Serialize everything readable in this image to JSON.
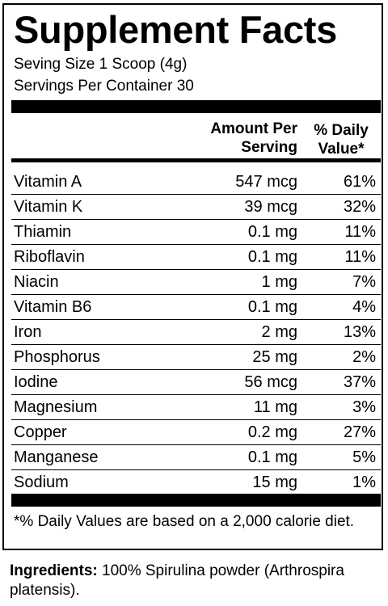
{
  "title": "Supplement Facts",
  "serving_size": "Seving Size 1 Scoop (4g)",
  "servings_per_container": "Servings Per Container 30",
  "header": {
    "amount_line1": "Amount Per",
    "amount_line2": "Serving",
    "dv_line1": "% Daily",
    "dv_line2": "Value*"
  },
  "nutrients": [
    {
      "name": "Vitamin A",
      "amount": "547 mcg",
      "dv": "61%"
    },
    {
      "name": "Vitamin K",
      "amount": "39 mcg",
      "dv": "32%"
    },
    {
      "name": "Thiamin",
      "amount": "0.1 mg",
      "dv": "11%"
    },
    {
      "name": "Riboflavin",
      "amount": "0.1 mg",
      "dv": "11%"
    },
    {
      "name": "Niacin",
      "amount": "1 mg",
      "dv": "7%"
    },
    {
      "name": "Vitamin B6",
      "amount": "0.1 mg",
      "dv": "4%"
    },
    {
      "name": "Iron",
      "amount": "2 mg",
      "dv": "13%"
    },
    {
      "name": "Phosphorus",
      "amount": "25 mg",
      "dv": "2%"
    },
    {
      "name": "Iodine",
      "amount": "56 mcg",
      "dv": "37%"
    },
    {
      "name": "Magnesium",
      "amount": "11 mg",
      "dv": "3%"
    },
    {
      "name": "Copper",
      "amount": "0.2 mg",
      "dv": "27%"
    },
    {
      "name": "Manganese",
      "amount": "0.1 mg",
      "dv": "5%"
    },
    {
      "name": "Sodium",
      "amount": "15 mg",
      "dv": "1%"
    }
  ],
  "footnote": "*% Daily Values are based on a 2,000 calorie diet.",
  "ingredients": {
    "label": "Ingredients:",
    "text": " 100% Spirulina powder (Arthrospira platensis)."
  }
}
